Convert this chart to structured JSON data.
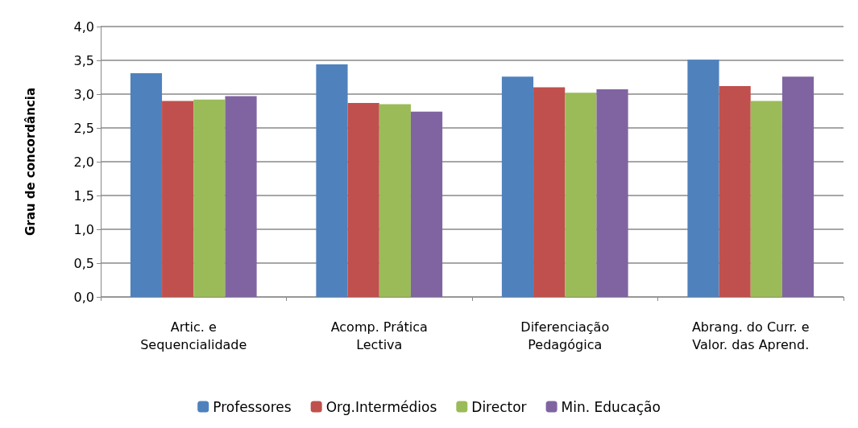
{
  "chart_data": {
    "type": "bar",
    "ylabel": "Grau de concordância",
    "categories": [
      "Artic. e\nSequencialidade",
      "Acomp. Prática\nLectiva",
      "Diferenciação\nPedagógica",
      "Abrang. do Curr. e\nValor. das Aprend."
    ],
    "series": [
      {
        "name": "Professores",
        "color": "#4f81bd",
        "values": [
          3.31,
          3.44,
          3.26,
          3.51
        ]
      },
      {
        "name": "Org.Intermédios",
        "color": "#c0504d",
        "values": [
          2.9,
          2.87,
          3.1,
          3.12
        ]
      },
      {
        "name": "Director",
        "color": "#9bbb59",
        "values": [
          2.92,
          2.85,
          3.02,
          2.9
        ]
      },
      {
        "name": "Min. Educação",
        "color": "#8064a2",
        "values": [
          2.97,
          2.74,
          3.07,
          3.26
        ]
      }
    ],
    "ylim": [
      0,
      4
    ],
    "yticks": [
      {
        "value": 0,
        "label": "0,0"
      },
      {
        "value": 0.5,
        "label": "0,5"
      },
      {
        "value": 1,
        "label": "1,0"
      },
      {
        "value": 1.5,
        "label": "1,5"
      },
      {
        "value": 2,
        "label": "2,0"
      },
      {
        "value": 2.5,
        "label": "2,5"
      },
      {
        "value": 3,
        "label": "3,0"
      },
      {
        "value": 3.5,
        "label": "3,5"
      },
      {
        "value": 4,
        "label": "4,0"
      }
    ],
    "grid": "y",
    "legend": "bottom"
  }
}
